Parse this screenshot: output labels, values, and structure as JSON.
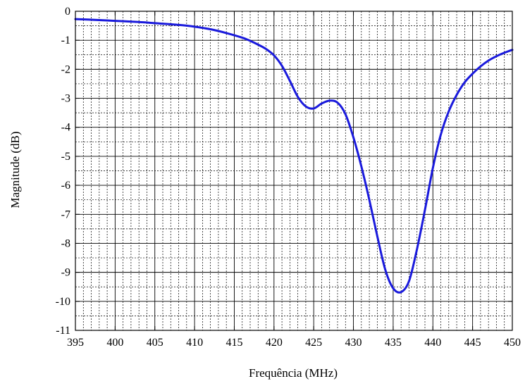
{
  "chart_data": {
    "type": "line",
    "title": "",
    "xlabel": "Frequência (MHz)",
    "ylabel": "Magnitude (dB)",
    "xlim": [
      395,
      450
    ],
    "ylim": [
      -11,
      0
    ],
    "x_ticks": [
      "395",
      "400",
      "405",
      "410",
      "415",
      "420",
      "425",
      "430",
      "435",
      "440",
      "445",
      "450"
    ],
    "y_ticks": [
      "0",
      "-1",
      "-2",
      "-3",
      "-4",
      "-5",
      "-6",
      "-7",
      "-8",
      "-9",
      "-10",
      "-11"
    ],
    "grid": true,
    "legend": "none",
    "colors": {
      "line": "#1a1adc",
      "axis": "#000000",
      "grid": "#000000"
    },
    "series": [
      {
        "x": [
          395,
          397,
          400,
          403,
          405,
          408,
          410,
          412,
          414,
          416,
          417,
          418,
          419,
          420,
          421,
          422,
          423,
          424,
          425,
          426,
          427,
          428,
          429,
          430,
          431,
          432,
          433,
          434,
          435,
          436,
          437,
          438,
          439,
          440,
          441,
          442,
          443,
          444,
          445,
          446,
          447,
          448,
          449,
          450
        ],
        "values": [
          -0.27,
          -0.29,
          -0.33,
          -0.37,
          -0.41,
          -0.47,
          -0.53,
          -0.62,
          -0.75,
          -0.91,
          -1.02,
          -1.15,
          -1.3,
          -1.52,
          -1.88,
          -2.4,
          -2.95,
          -3.28,
          -3.35,
          -3.18,
          -3.08,
          -3.15,
          -3.55,
          -4.35,
          -5.35,
          -6.5,
          -7.75,
          -8.9,
          -9.55,
          -9.68,
          -9.3,
          -8.2,
          -6.85,
          -5.4,
          -4.25,
          -3.45,
          -2.88,
          -2.45,
          -2.15,
          -1.9,
          -1.7,
          -1.55,
          -1.43,
          -1.33
        ]
      }
    ]
  }
}
